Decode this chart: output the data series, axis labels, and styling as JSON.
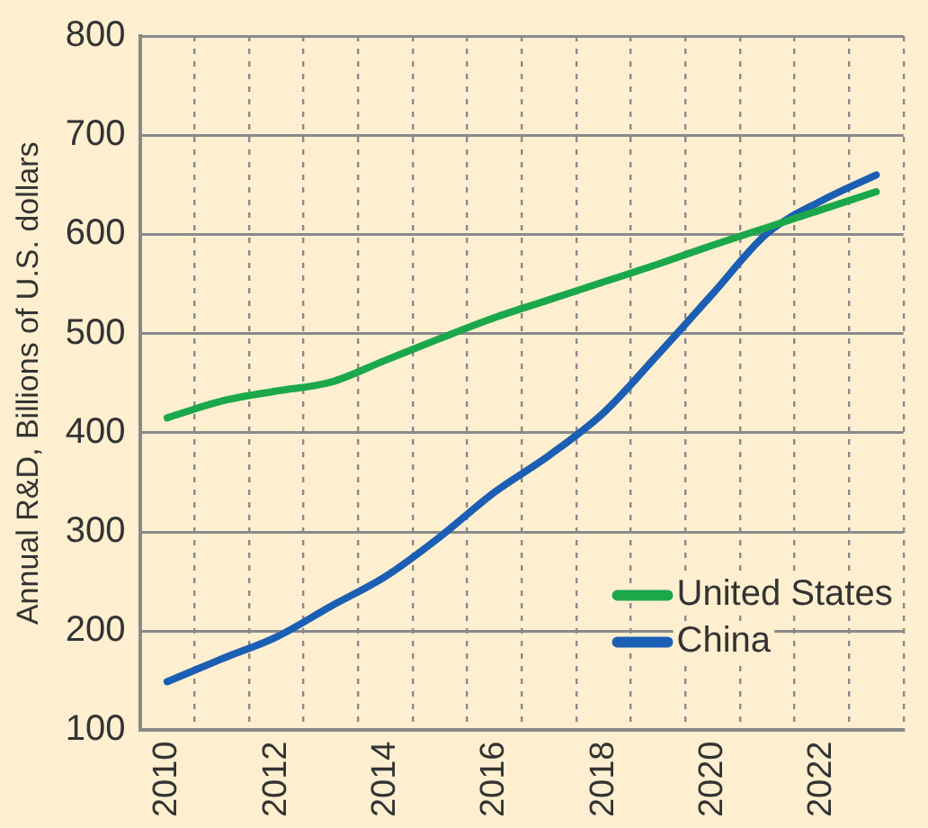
{
  "chart_data": {
    "type": "line",
    "ylabel": "Annual R&D, Billions of U.S. dollars",
    "categories": [
      "2010",
      null,
      "2012",
      null,
      "2014",
      null,
      "2016",
      null,
      "2018",
      null,
      "2020",
      null,
      "2022",
      null
    ],
    "series": [
      {
        "name": "United States",
        "color": "#1ba84b",
        "values": [
          415,
          432,
          442,
          451,
          473,
          495,
          516,
          534,
          552,
          570,
          589,
          607,
          625,
          643
        ]
      },
      {
        "name": "China",
        "color": "#1a5fb4",
        "values": [
          149,
          172,
          194,
          225,
          255,
          295,
          340,
          377,
          420,
          479,
          540,
          601,
          634,
          660
        ]
      }
    ],
    "ylim": [
      100,
      800
    ],
    "yticks": [
      100,
      200,
      300,
      400,
      500,
      600,
      700,
      800
    ],
    "grid": true,
    "legend": "bottom right",
    "marker": "none",
    "line_style": "solid"
  }
}
